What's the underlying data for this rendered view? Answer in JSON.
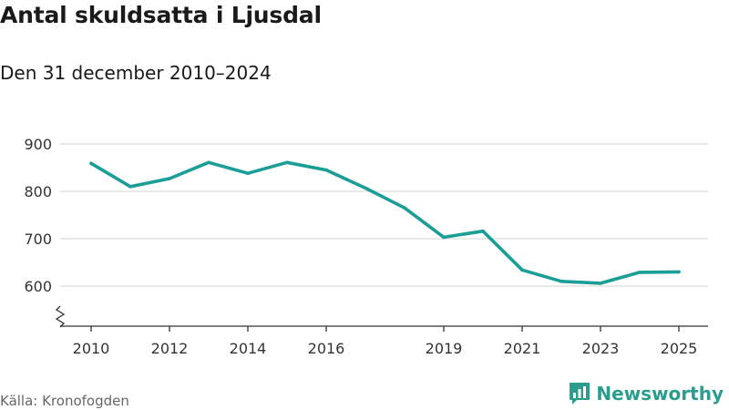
{
  "title": "Antal skuldsatta i Ljusdal",
  "subtitle": "Den 31 december 2010–2024",
  "source": "Källa: Kronofogden",
  "brand": {
    "name": "Newsworthy",
    "icon": "bar-chart-speech-bubble-icon",
    "color": "#2a9d8f"
  },
  "colors": {
    "line": "#1a9e96",
    "grid": "#dddddd",
    "axis": "#333333",
    "text": "#333333"
  },
  "chart_data": {
    "type": "line",
    "title": "Antal skuldsatta i Ljusdal",
    "subtitle": "Den 31 december 2010–2024",
    "xlabel": "",
    "ylabel": "",
    "x": [
      2010,
      2011,
      2012,
      2013,
      2014,
      2015,
      2016,
      2017,
      2018,
      2019,
      2020,
      2021,
      2022,
      2023,
      2024,
      2025
    ],
    "values": [
      859,
      810,
      827,
      861,
      838,
      861,
      845,
      807,
      765,
      703,
      716,
      634,
      610,
      606,
      629,
      630
    ],
    "xlim": [
      2010,
      2025
    ],
    "ylim": [
      560,
      900
    ],
    "y_ticks": [
      600,
      700,
      800,
      900
    ],
    "x_ticks": [
      2010,
      2012,
      2014,
      2016,
      2019,
      2021,
      2023,
      2025
    ],
    "y_axis_break": true,
    "grid": true
  }
}
